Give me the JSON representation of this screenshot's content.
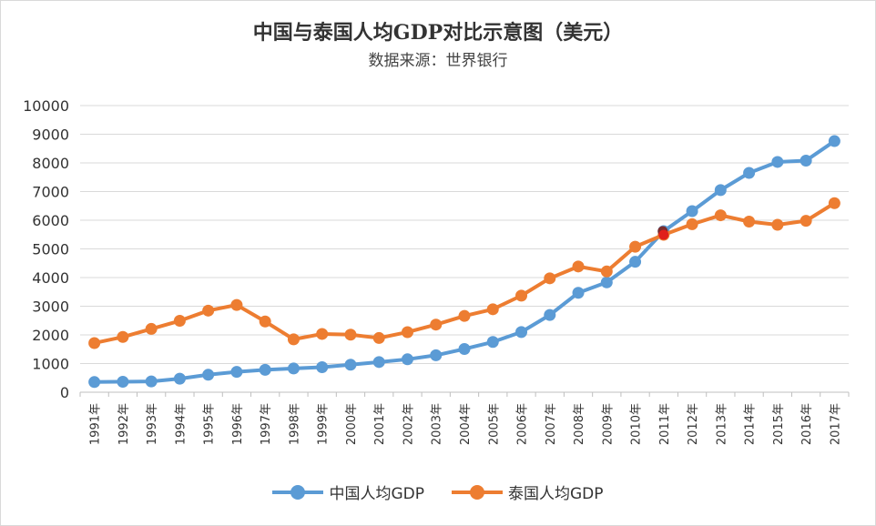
{
  "chart_data": {
    "type": "line",
    "title": "中国与泰国人均GDP对比示意图（美元）",
    "subtitle": "数据来源：世界银行",
    "categories": [
      "1991年",
      "1992年",
      "1993年",
      "1994年",
      "1995年",
      "1996年",
      "1997年",
      "1998年",
      "1999年",
      "2000年",
      "2001年",
      "2002年",
      "2003年",
      "2004年",
      "2005年",
      "2006年",
      "2007年",
      "2008年",
      "2009年",
      "2010年",
      "2011年",
      "2012年",
      "2013年",
      "2014年",
      "2015年",
      "2016年",
      "2017年"
    ],
    "y_ticks": [
      "0",
      "1000",
      "2000",
      "3000",
      "4000",
      "5000",
      "6000",
      "7000",
      "8000",
      "9000",
      "10000"
    ],
    "ylim": [
      0,
      10000
    ],
    "grid": true,
    "legend_position": "bottom",
    "series": [
      {
        "name": "中国人均GDP",
        "color": "#5b9bd5",
        "values": [
          356,
          366,
          377,
          473,
          610,
          709,
          781,
          828,
          873,
          959,
          1053,
          1149,
          1289,
          1509,
          1753,
          2099,
          2694,
          3468,
          3832,
          4550,
          5618,
          6317,
          7051,
          7651,
          8033,
          8079,
          8760
        ]
      },
      {
        "name": "泰国人均GDP",
        "color": "#ed7d31",
        "values": [
          1715,
          1928,
          2209,
          2491,
          2847,
          3044,
          2468,
          1846,
          2033,
          2008,
          1891,
          2096,
          2359,
          2661,
          2894,
          3369,
          3974,
          4386,
          4213,
          5076,
          5492,
          5860,
          6172,
          5952,
          5840,
          5979,
          6595
        ]
      }
    ],
    "highlight_marker": {
      "category": "2011年",
      "color": "#e0201b"
    }
  }
}
